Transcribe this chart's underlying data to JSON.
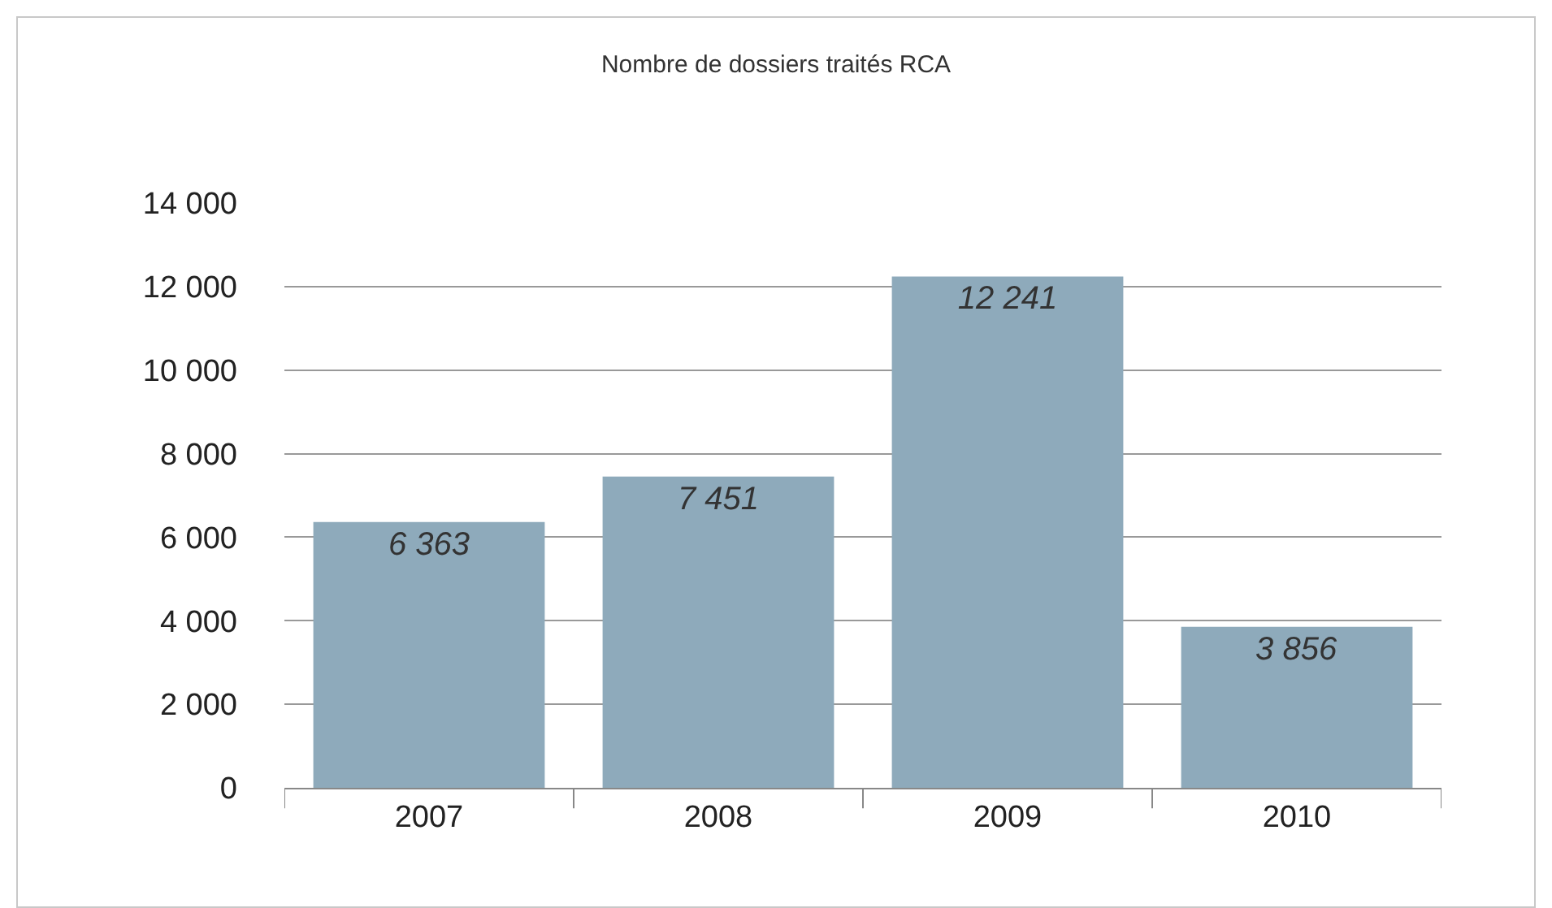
{
  "chart_data": {
    "type": "bar",
    "title": "Nombre de dossiers traités RCA",
    "categories": [
      "2007",
      "2008",
      "2009",
      "2010"
    ],
    "values": [
      6363,
      7451,
      12241,
      3856
    ],
    "value_labels": [
      "6 363",
      "7 451",
      "12 241",
      "3 856"
    ],
    "color": "#8eaabb",
    "ylim": [
      0,
      14000
    ],
    "yticks": [
      0,
      {
        "value": 2000,
        "label": "2 000"
      },
      {
        "value": 4000,
        "label": "4 000"
      },
      {
        "value": 6000,
        "label": "6 000"
      },
      {
        "value": 8000,
        "label": "8 000"
      },
      {
        "value": 10000,
        "label": "10 000"
      },
      {
        "value": 12000,
        "label": "12 000"
      },
      {
        "value": 14000,
        "label": "14 000"
      }
    ],
    "grid": "y"
  }
}
